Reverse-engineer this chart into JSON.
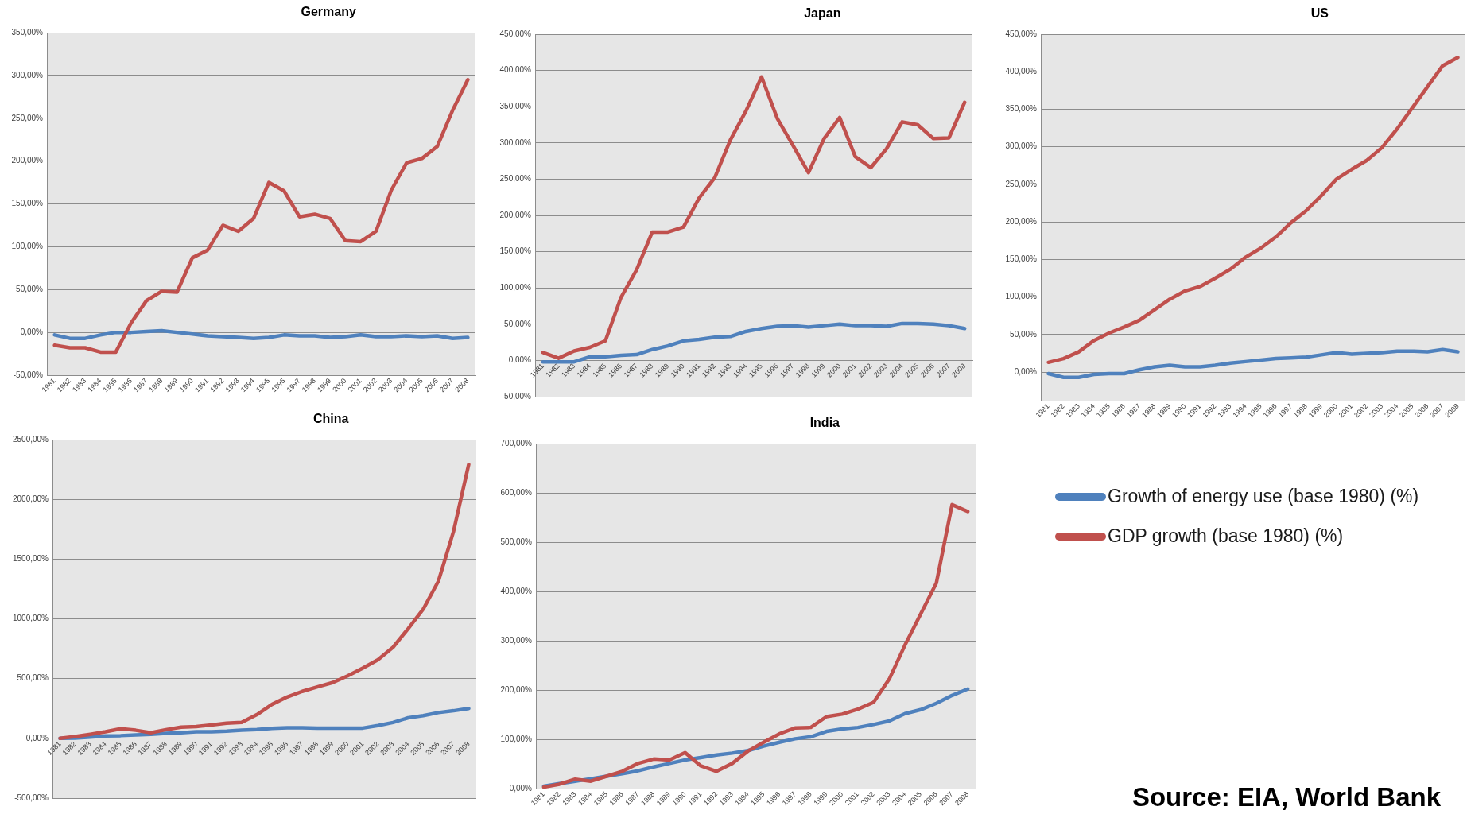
{
  "chart_data": [
    {
      "type": "line",
      "title": "Germany",
      "categories": [
        "1981",
        "1982",
        "1983",
        "1984",
        "1985",
        "1986",
        "1987",
        "1988",
        "1989",
        "1990",
        "1991",
        "1992",
        "1993",
        "1994",
        "1995",
        "1996",
        "1997",
        "1998",
        "1999",
        "2000",
        "2001",
        "2002",
        "2003",
        "2004",
        "2005",
        "2006",
        "2007",
        "2008"
      ],
      "series": [
        {
          "color": "#4f81bd",
          "values": [
            -3,
            -7,
            -7,
            -3,
            0,
            0,
            1,
            2,
            0,
            -2,
            -4,
            -5,
            -6,
            -7,
            -6,
            -3,
            -4,
            -4,
            -6,
            -5,
            -3,
            -5,
            -5,
            -4,
            -5,
            -4,
            -7,
            -6
          ]
        },
        {
          "color": "#c0504d",
          "values": [
            -15,
            -18,
            -18,
            -23,
            -23,
            11,
            37,
            48,
            47,
            87,
            96,
            125,
            118,
            133,
            175,
            165,
            135,
            138,
            133,
            107,
            106,
            118,
            166,
            198,
            203,
            217,
            259,
            295
          ]
        }
      ],
      "ylim": [
        -50,
        350
      ],
      "yticks": [
        {
          "value": -50,
          "label": "-50,00%"
        },
        {
          "value": 0,
          "label": "0,00%"
        },
        {
          "value": 50,
          "label": "50,00%"
        },
        {
          "value": 100,
          "label": "100,00%"
        },
        {
          "value": 150,
          "label": "150,00%"
        },
        {
          "value": 200,
          "label": "200,00%"
        },
        {
          "value": 250,
          "label": "250,00%"
        },
        {
          "value": 300,
          "label": "300,00%"
        },
        {
          "value": 350,
          "label": "350,00%"
        }
      ],
      "grid": "y"
    },
    {
      "type": "line",
      "title": "Japan",
      "categories": [
        "1981",
        "1982",
        "1983",
        "1984",
        "1985",
        "1986",
        "1987",
        "1988",
        "1989",
        "1990",
        "1991",
        "1992",
        "1993",
        "1994",
        "1995",
        "1996",
        "1997",
        "1998",
        "1999",
        "2000",
        "2001",
        "2002",
        "2003",
        "2004",
        "2005",
        "2006",
        "2007",
        "2008"
      ],
      "series": [
        {
          "color": "#4f81bd",
          "values": [
            -2,
            -2,
            -2,
            5,
            5,
            7,
            8,
            15,
            20,
            27,
            29,
            32,
            33,
            40,
            44,
            47,
            48,
            46,
            48,
            50,
            48,
            48,
            47,
            51,
            51,
            50,
            48,
            44
          ]
        },
        {
          "color": "#c0504d",
          "values": [
            11,
            3,
            13,
            18,
            27,
            87,
            125,
            177,
            177,
            184,
            224,
            252,
            304,
            344,
            391,
            334,
            297,
            259,
            306,
            335,
            281,
            266,
            292,
            329,
            325,
            306,
            307,
            356
          ]
        }
      ],
      "ylim": [
        -50,
        450
      ],
      "yticks": [
        {
          "value": -50,
          "label": "-50,00%"
        },
        {
          "value": 0,
          "label": "0,00%"
        },
        {
          "value": 50,
          "label": "50,00%"
        },
        {
          "value": 100,
          "label": "100,00%"
        },
        {
          "value": 150,
          "label": "150,00%"
        },
        {
          "value": 200,
          "label": "200,00%"
        },
        {
          "value": 250,
          "label": "250,00%"
        },
        {
          "value": 300,
          "label": "300,00%"
        },
        {
          "value": 350,
          "label": "350,00%"
        },
        {
          "value": 400,
          "label": "400,00%"
        },
        {
          "value": 450,
          "label": "450,00%"
        }
      ],
      "grid": "y"
    },
    {
      "type": "line",
      "title": "US",
      "categories": [
        "1981",
        "1982",
        "1983",
        "1984",
        "1985",
        "1986",
        "1987",
        "1988",
        "1989",
        "1990",
        "1991",
        "1992",
        "1993",
        "1994",
        "1995",
        "1996",
        "1997",
        "1998",
        "1999",
        "2000",
        "2001",
        "2002",
        "2003",
        "2004",
        "2005",
        "2006",
        "2007",
        "2008"
      ],
      "series": [
        {
          "color": "#4f81bd",
          "values": [
            -2,
            -7,
            -7,
            -3,
            -2,
            -2,
            3,
            7,
            9,
            7,
            7,
            9,
            12,
            14,
            16,
            18,
            19,
            20,
            23,
            26,
            24,
            25,
            26,
            28,
            28,
            27,
            30,
            27
          ]
        },
        {
          "color": "#c0504d",
          "values": [
            13,
            18,
            27,
            42,
            52,
            60,
            69,
            83,
            97,
            108,
            114,
            125,
            137,
            153,
            165,
            180,
            199,
            215,
            235,
            257,
            270,
            282,
            299,
            324,
            352,
            380,
            408,
            419
          ]
        }
      ],
      "ylim": [
        -38,
        450
      ],
      "yticks": [
        {
          "value": 0,
          "label": "0,00%"
        },
        {
          "value": 50,
          "label": "50,00%"
        },
        {
          "value": 100,
          "label": "100,00%"
        },
        {
          "value": 150,
          "label": "150,00%"
        },
        {
          "value": 200,
          "label": "200,00%"
        },
        {
          "value": 250,
          "label": "250,00%"
        },
        {
          "value": 300,
          "label": "300,00%"
        },
        {
          "value": 350,
          "label": "350,00%"
        },
        {
          "value": 400,
          "label": "400,00%"
        },
        {
          "value": 450,
          "label": "450,00%"
        }
      ],
      "grid": "y"
    },
    {
      "type": "line",
      "title": "China",
      "categories": [
        "1981",
        "1982",
        "1983",
        "1984",
        "1985",
        "1986",
        "1987",
        "1988",
        "1989",
        "1990",
        "1991",
        "1992",
        "1993",
        "1994",
        "1995",
        "1996",
        "1997",
        "1998",
        "1999",
        "2000",
        "2001",
        "2002",
        "2003",
        "2004",
        "2005",
        "2006",
        "2007",
        "2008"
      ],
      "series": [
        {
          "color": "#4f81bd",
          "values": [
            0,
            3,
            10,
            21,
            23,
            29,
            34,
            42,
            47,
            55,
            55,
            60,
            68,
            73,
            83,
            88,
            88,
            86,
            86,
            86,
            86,
            107,
            133,
            172,
            190,
            216,
            231,
            250
          ]
        },
        {
          "color": "#c0504d",
          "values": [
            0,
            15,
            34,
            55,
            80,
            68,
            47,
            73,
            94,
            99,
            112,
            127,
            133,
            198,
            284,
            346,
            393,
            430,
            466,
            523,
            588,
            658,
            762,
            918,
            1082,
            1316,
            1733,
            2292
          ]
        }
      ],
      "ylim": [
        -500,
        2500
      ],
      "yticks": [
        {
          "value": -500,
          "label": "-500,00%"
        },
        {
          "value": 0,
          "label": "0,00%"
        },
        {
          "value": 500,
          "label": "500,00%"
        },
        {
          "value": 1000,
          "label": "1000,00%"
        },
        {
          "value": 1500,
          "label": "1500,00%"
        },
        {
          "value": 2000,
          "label": "2000,00%"
        },
        {
          "value": 2500,
          "label": "2500,00%"
        }
      ],
      "grid": "y"
    },
    {
      "type": "line",
      "title": "India",
      "categories": [
        "1981",
        "1982",
        "1983",
        "1984",
        "1985",
        "1986",
        "1987",
        "1988",
        "1989",
        "1990",
        "1991",
        "1992",
        "1993",
        "1994",
        "1995",
        "1996",
        "1997",
        "1998",
        "1999",
        "2000",
        "2001",
        "2002",
        "2003",
        "2004",
        "2005",
        "2006",
        "2007",
        "2008"
      ],
      "series": [
        {
          "name": "Growth of energy use (base 1980) (%)",
          "color": "#4f81bd",
          "values": [
            5,
            10,
            15,
            20,
            25,
            30,
            36,
            44,
            51,
            58,
            63,
            68,
            72,
            77,
            86,
            94,
            101,
            105,
            116,
            121,
            124,
            130,
            137,
            152,
            160,
            173,
            189,
            202
          ]
        },
        {
          "name": "GDP growth (base 1980) (%)",
          "color": "#c0504d",
          "values": [
            3,
            9,
            19,
            15,
            25,
            35,
            51,
            60,
            58,
            73,
            46,
            35,
            51,
            76,
            94,
            111,
            123,
            124,
            146,
            151,
            161,
            175,
            222,
            291,
            354,
            417,
            576,
            562
          ]
        }
      ],
      "ylim": [
        0,
        700
      ],
      "yticks": [
        {
          "value": 0,
          "label": "0,00%"
        },
        {
          "value": 100,
          "label": "100,00%"
        },
        {
          "value": 200,
          "label": "200,00%"
        },
        {
          "value": 300,
          "label": "300,00%"
        },
        {
          "value": 400,
          "label": "400,00%"
        },
        {
          "value": 500,
          "label": "500,00%"
        },
        {
          "value": 600,
          "label": "600,00%"
        },
        {
          "value": 700,
          "label": "700,00%"
        }
      ],
      "grid": "y",
      "legend": "right",
      "annotations": [
        "Source: EIA, World Bank"
      ]
    }
  ]
}
